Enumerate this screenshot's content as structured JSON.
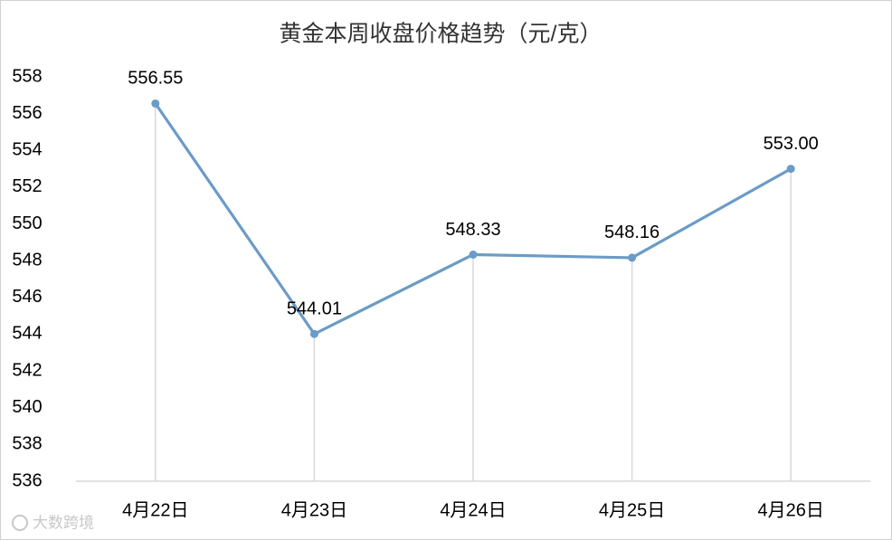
{
  "chart_data": {
    "type": "line",
    "title": "黄金本周收盘价格趋势（元/克）",
    "categories": [
      "4月22日",
      "4月23日",
      "4月24日",
      "4月25日",
      "4月26日"
    ],
    "values": [
      556.55,
      544.01,
      548.33,
      548.16,
      553.0
    ],
    "value_labels": [
      "556.55",
      "544.01",
      "548.33",
      "548.16",
      "553.00"
    ],
    "color": "#6b9bc7",
    "ylim": [
      536,
      558
    ],
    "yticks": [
      536,
      538,
      540,
      542,
      544,
      546,
      548,
      550,
      552,
      554,
      556,
      558
    ],
    "drop_lines": true,
    "watermark": "大数跨境"
  }
}
